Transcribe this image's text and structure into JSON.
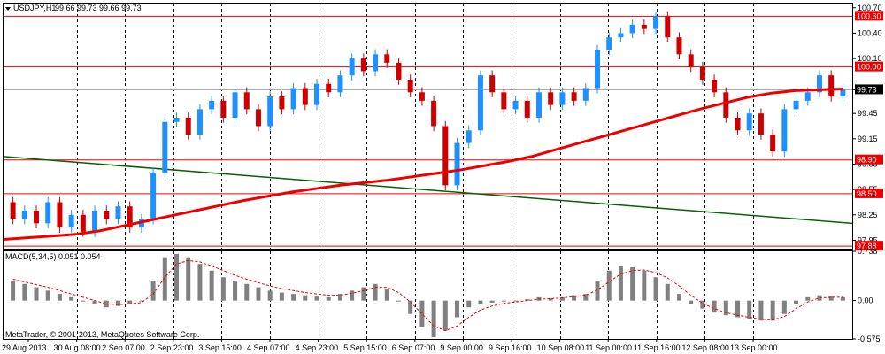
{
  "header": {
    "symbol": "USDJPY,H1",
    "ohlc": "99.66 99.73 99.66 99.73"
  },
  "indicator": {
    "label": "MACD(5,34,5) 0.051 0.054"
  },
  "copyright": "MetaTrader, © 2001-2013, MetaQuotes Software Corp.",
  "colors": {
    "bull": "#1e90ff",
    "bear": "#cc0000",
    "ma": "#ee0000",
    "trendline": "#006400",
    "hline": "#ee0000",
    "macd_bar": "#808080",
    "macd_signal": "#ee0000",
    "grid": "#000000"
  },
  "chart_data": {
    "type": "candlestick",
    "symbol": "USDJPY",
    "timeframe": "H1",
    "x_tick_labels": [
      "29 Aug 2013",
      "30 Aug 08:00",
      "2 Sep 07:00",
      "2 Sep 23:00",
      "3 Sep 15:00",
      "4 Sep 07:00",
      "4 Sep 23:00",
      "5 Sep 15:00",
      "6 Sep 07:00",
      "9 Sep 00:00",
      "9 Sep 16:00",
      "10 Sep 08:00",
      "11 Sep 00:00",
      "11 Sep 16:00",
      "12 Sep 08:00",
      "13 Sep 00:00"
    ],
    "y_tick_labels": [
      "100.70",
      "100.40",
      "100.10",
      "99.73",
      "99.45",
      "99.15",
      "98.85",
      "98.55",
      "98.25",
      "97.95"
    ],
    "ylim": [
      97.85,
      100.75
    ],
    "price_tags": [
      "100.60",
      "100.00",
      "99.73",
      "98.90",
      "98.50",
      "97.88"
    ],
    "horizontal_levels": [
      100.6,
      100.0,
      98.9,
      98.5,
      97.88
    ],
    "current_price": 99.73,
    "trendline": {
      "start": 98.94,
      "end": 98.15
    },
    "moving_average": [
      97.96,
      97.98,
      98.0,
      98.02,
      98.06,
      98.12,
      98.18,
      98.24,
      98.3,
      98.36,
      98.42,
      98.47,
      98.52,
      98.56,
      98.6,
      98.63,
      98.66,
      98.7,
      98.74,
      98.78,
      98.83,
      98.88,
      98.94,
      99.02,
      99.1,
      99.18,
      99.26,
      99.34,
      99.42,
      99.5,
      99.57,
      99.64,
      99.69,
      99.72,
      99.73,
      99.74
    ],
    "candles": [
      [
        98.4,
        98.2
      ],
      [
        98.2,
        98.3
      ],
      [
        98.3,
        98.15
      ],
      [
        98.15,
        98.4
      ],
      [
        98.4,
        98.1
      ],
      [
        98.1,
        98.25
      ],
      [
        98.25,
        98.05
      ],
      [
        98.05,
        98.3
      ],
      [
        98.3,
        98.2
      ],
      [
        98.2,
        98.35
      ],
      [
        98.35,
        98.1
      ],
      [
        98.1,
        98.2
      ],
      [
        98.2,
        98.75
      ],
      [
        98.75,
        99.35
      ],
      [
        99.35,
        99.4
      ],
      [
        99.4,
        99.2
      ],
      [
        99.2,
        99.5
      ],
      [
        99.5,
        99.6
      ],
      [
        99.6,
        99.4
      ],
      [
        99.4,
        99.7
      ],
      [
        99.7,
        99.5
      ],
      [
        99.5,
        99.3
      ],
      [
        99.3,
        99.65
      ],
      [
        99.65,
        99.5
      ],
      [
        99.5,
        99.75
      ],
      [
        99.75,
        99.55
      ],
      [
        99.55,
        99.8
      ],
      [
        99.8,
        99.7
      ],
      [
        99.7,
        99.9
      ],
      [
        99.9,
        100.1
      ],
      [
        100.1,
        99.95
      ],
      [
        99.95,
        100.15
      ],
      [
        100.15,
        100.05
      ],
      [
        100.05,
        99.85
      ],
      [
        99.85,
        99.7
      ],
      [
        99.7,
        99.6
      ],
      [
        99.6,
        99.3
      ],
      [
        99.3,
        98.6
      ],
      [
        98.6,
        99.1
      ],
      [
        99.1,
        99.25
      ],
      [
        99.25,
        99.9
      ],
      [
        99.9,
        99.7
      ],
      [
        99.7,
        99.5
      ],
      [
        99.5,
        99.6
      ],
      [
        99.6,
        99.4
      ],
      [
        99.4,
        99.7
      ],
      [
        99.7,
        99.55
      ],
      [
        99.55,
        99.7
      ],
      [
        99.7,
        99.6
      ],
      [
        99.6,
        99.75
      ],
      [
        99.75,
        100.2
      ],
      [
        100.2,
        100.35
      ],
      [
        100.35,
        100.4
      ],
      [
        100.4,
        100.5
      ],
      [
        100.5,
        100.45
      ],
      [
        100.45,
        100.6
      ],
      [
        100.6,
        100.35
      ],
      [
        100.35,
        100.15
      ],
      [
        100.15,
        100.0
      ],
      [
        100.0,
        99.85
      ],
      [
        99.85,
        99.7
      ],
      [
        99.7,
        99.4
      ],
      [
        99.4,
        99.25
      ],
      [
        99.25,
        99.45
      ],
      [
        99.45,
        99.2
      ],
      [
        99.2,
        99.0
      ],
      [
        99.0,
        99.5
      ],
      [
        99.5,
        99.6
      ],
      [
        99.6,
        99.7
      ],
      [
        99.7,
        99.9
      ],
      [
        99.9,
        99.65
      ],
      [
        99.65,
        99.73
      ]
    ],
    "macd": {
      "ylim": [
        -0.575,
        0.738
      ],
      "y_tick_labels": [
        "0.738",
        "0.00",
        "-0.575"
      ],
      "histogram": [
        0.3,
        0.25,
        0.2,
        0.15,
        0.1,
        0.05,
        0.0,
        -0.05,
        -0.1,
        -0.08,
        -0.05,
        0.0,
        0.3,
        0.65,
        0.7,
        0.65,
        0.55,
        0.45,
        0.35,
        0.3,
        0.25,
        0.2,
        0.15,
        0.12,
        0.1,
        0.08,
        0.06,
        0.05,
        0.1,
        0.15,
        0.2,
        0.25,
        0.18,
        0.0,
        -0.2,
        -0.4,
        -0.55,
        -0.45,
        -0.25,
        -0.1,
        -0.05,
        -0.03,
        0.0,
        0.0,
        0.02,
        0.05,
        0.03,
        0.05,
        0.08,
        0.1,
        0.3,
        0.45,
        0.52,
        0.5,
        0.45,
        0.35,
        0.25,
        0.1,
        -0.05,
        -0.12,
        -0.18,
        -0.22,
        -0.25,
        -0.28,
        -0.3,
        -0.3,
        -0.2,
        -0.05,
        0.05,
        0.08,
        0.06,
        0.05
      ],
      "signal": [
        0.32,
        0.28,
        0.24,
        0.2,
        0.15,
        0.1,
        0.05,
        0.0,
        -0.05,
        -0.06,
        -0.05,
        -0.03,
        0.1,
        0.35,
        0.55,
        0.6,
        0.58,
        0.52,
        0.45,
        0.38,
        0.32,
        0.27,
        0.22,
        0.18,
        0.15,
        0.12,
        0.1,
        0.08,
        0.08,
        0.11,
        0.15,
        0.2,
        0.2,
        0.12,
        -0.02,
        -0.2,
        -0.38,
        -0.45,
        -0.38,
        -0.25,
        -0.14,
        -0.08,
        -0.04,
        -0.02,
        0.0,
        0.02,
        0.03,
        0.04,
        0.06,
        0.08,
        0.16,
        0.28,
        0.4,
        0.45,
        0.46,
        0.42,
        0.34,
        0.22,
        0.08,
        -0.04,
        -0.12,
        -0.18,
        -0.22,
        -0.25,
        -0.28,
        -0.29,
        -0.24,
        -0.12,
        -0.02,
        0.04,
        0.05,
        0.05
      ]
    }
  }
}
